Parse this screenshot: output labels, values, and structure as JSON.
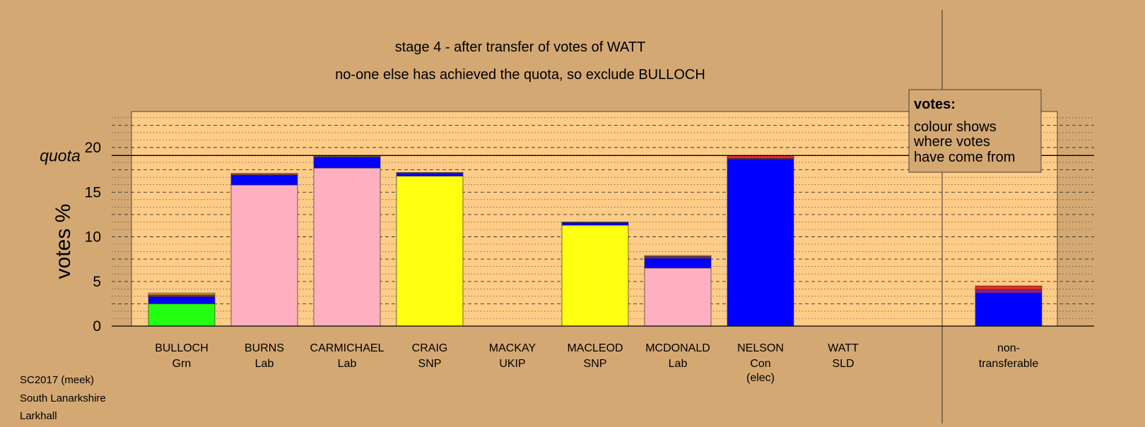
{
  "chart_data": {
    "type": "bar",
    "title": "stage 4 - after transfer of votes of WATT",
    "subtitle": "no-one else has achieved the quota, so exclude BULLOCH",
    "ylabel": "votes %",
    "ylim": [
      0,
      24
    ],
    "yticks": [
      0,
      5,
      10,
      15,
      20
    ],
    "quota_label": "quota",
    "quota": 19.1,
    "grid": true,
    "legend": {
      "position": "top-right",
      "title": "votes:",
      "lines": [
        "colour shows",
        "where votes",
        "have come from"
      ]
    },
    "colors": {
      "Grn": "#22FF11",
      "Lab": "#FFB0C0",
      "SNP": "#FFFF11",
      "Con": "#0000FF",
      "UKIP": "#8B1A8B",
      "SLD": "#FFA500",
      "other": "#E03020",
      "grid_panel": "#FFCC88",
      "background": "#D4A873"
    },
    "candidates": [
      {
        "name": "BULLOCH",
        "party": "Grn",
        "elected": "",
        "segments": [
          {
            "from": "Grn",
            "value": 2.5
          },
          {
            "from": "Con",
            "value": 0.8
          },
          {
            "from": "UKIP",
            "value": 0.2
          },
          {
            "from": "SLD",
            "value": 0.2
          }
        ]
      },
      {
        "name": "BURNS",
        "party": "Lab",
        "elected": "",
        "segments": [
          {
            "from": "Lab",
            "value": 15.8
          },
          {
            "from": "Con",
            "value": 1.1
          },
          {
            "from": "UKIP",
            "value": 0.1
          },
          {
            "from": "SLD",
            "value": 0.1
          }
        ]
      },
      {
        "name": "CARMICHAEL",
        "party": "Lab",
        "elected": "",
        "segments": [
          {
            "from": "Lab",
            "value": 17.7
          },
          {
            "from": "Con",
            "value": 1.2
          },
          {
            "from": "UKIP",
            "value": 0.1
          },
          {
            "from": "SLD",
            "value": 0.1
          }
        ]
      },
      {
        "name": "CRAIG",
        "party": "SNP",
        "elected": "",
        "segments": [
          {
            "from": "SNP",
            "value": 16.8
          },
          {
            "from": "Con",
            "value": 0.3
          },
          {
            "from": "UKIP",
            "value": 0.1
          }
        ]
      },
      {
        "name": "MACKAY",
        "party": "UKIP",
        "elected": "",
        "segments": []
      },
      {
        "name": "MACLEOD",
        "party": "SNP",
        "elected": "",
        "segments": [
          {
            "from": "SNP",
            "value": 11.3
          },
          {
            "from": "Con",
            "value": 0.3
          },
          {
            "from": "UKIP",
            "value": 0.05
          }
        ]
      },
      {
        "name": "MCDONALD",
        "party": "Lab",
        "elected": "",
        "segments": [
          {
            "from": "Lab",
            "value": 6.5
          },
          {
            "from": "Con",
            "value": 1.1
          },
          {
            "from": "UKIP",
            "value": 0.2
          },
          {
            "from": "SLD",
            "value": 0.1
          }
        ]
      },
      {
        "name": "NELSON",
        "party": "Con",
        "elected": "(elec)",
        "segments": [
          {
            "from": "Con",
            "value": 18.7
          },
          {
            "from": "UKIP",
            "value": 0.1
          },
          {
            "from": "other",
            "value": 0.3
          }
        ]
      },
      {
        "name": "WATT",
        "party": "SLD",
        "elected": "",
        "segments": []
      }
    ],
    "nontransferable": {
      "label_line1": "non-",
      "label_line2": "transferable",
      "segments": [
        {
          "from": "Con",
          "value": 3.7
        },
        {
          "from": "UKIP",
          "value": 0.4
        },
        {
          "from": "other",
          "value": 0.4
        }
      ]
    }
  },
  "footer": {
    "line1": "SC2017 (meek)",
    "line2": "South Lanarkshire",
    "line3": "Larkhall"
  }
}
